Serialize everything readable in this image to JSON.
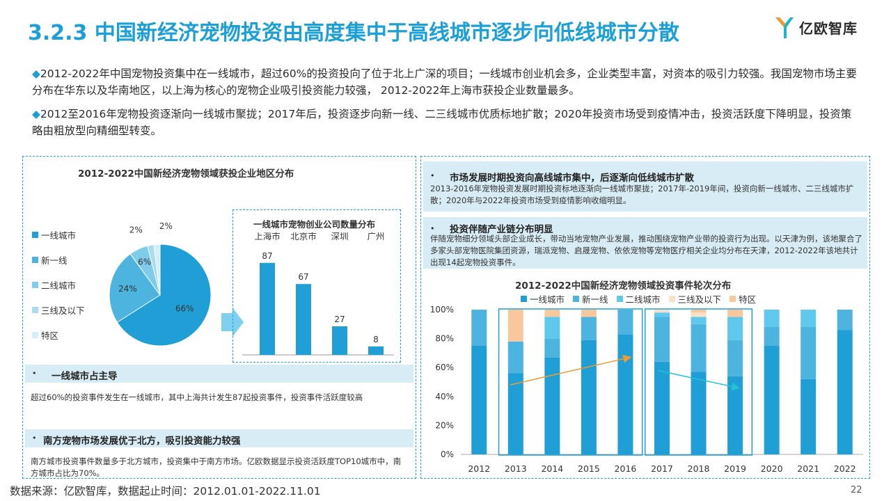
{
  "header": {
    "title": "3.2.3 中国新经济宠物投资由高度集中于高线城市逐步向低线城市分散",
    "logo_text": "亿欧智库"
  },
  "intro": {
    "bullet_symbol": "◆",
    "para1": "2012-2022年中国宠物投资集中在一线城市，超过60%的投资投向了位于北上广深的项目；一线城市创业机会多，企业类型丰富，对资本的吸引力较强。我国宠物市场主要分布在华东以及华南地区，以上海为核心的宠物企业吸引投资能力较强， 2012-2022年上海市获投企业数量最多。",
    "para2": "2012至2016年宠物投资逐渐向一线城市聚拢；2017年后，投资逐步向新一线、二三线城市优质标地扩散；2020年投资市场受到疫情冲击，投资活跃度下降明显，投资策略由粗放型向精细型转变。"
  },
  "left_panel": {
    "band1": {
      "bullet": "•",
      "head": "一线城市占主导",
      "body": "超过60%的投资事件发生在一线城市，其中上海共计发生87起投资事件，投资事件活跃度较高"
    },
    "band2": {
      "bullet": "•",
      "head": "南方宠物市场发展优于北方，吸引投资能力较强",
      "body": "南方城市投资事件数量多于北方城市，投资集中于南方市场。亿欧数据显示投资活跃度TOP10城市中，南方城市占比为70%。"
    }
  },
  "right_panel": {
    "band1": {
      "bullet": "•",
      "head": "市场发展时期投资向高线城市集中，后逐渐向低线城市扩散",
      "body": "2013-2016年宠物投资发展时期投资标地逐渐向一线城市聚拢；2017年-2019年间，投资向新一线城市、二三线城市扩散；2020年与2022年投资市场受到疫情影响收缩明显。"
    },
    "band2": {
      "bullet": "•",
      "head": "投资伴随产业链分布明显",
      "body": "伴随宠物细分领域头部企业成长，带动当地宠物产业发展，推动围绕宠物产业带的投资行为出现。以天津为例，该地聚合了多家头部宠物医院集团资源，瑞派宠物、启晟宠物、依依宠物等宠物医疗相关企业均分布在天津，2012-2022年该地共计出现14起宠物投资事件。"
    }
  },
  "footer": {
    "source": "数据来源：亿欧智库，数据起止时间：2012.01.01-2022.11.01",
    "page": "22"
  },
  "chart_data": [
    {
      "type": "pie",
      "title": "2012-2022中国新经济宠物领域获投企业地区分布",
      "categories": [
        "一线城市",
        "新一线",
        "二线城市",
        "三线及以下",
        "特区"
      ],
      "values": [
        66,
        24,
        6,
        2,
        2
      ],
      "labels": [
        "66%",
        "24%",
        "6%",
        "2%",
        "2%"
      ],
      "colors": [
        "#1f9fd6",
        "#4db3df",
        "#7fcbea",
        "#a9dcf1",
        "#d4eef9"
      ],
      "legend": "left"
    },
    {
      "type": "bar",
      "title": "一线城市宠物创业公司数量分布",
      "categories": [
        "上海市",
        "北京市",
        "深圳",
        "广州"
      ],
      "values": [
        87,
        67,
        27,
        8
      ],
      "color": "#1f9fd6"
    },
    {
      "type": "bar",
      "stacked": true,
      "title": "2012-2022中国新经济宠物领域投资事件轮次分布",
      "categories": [
        "2012",
        "2013",
        "2014",
        "2015",
        "2016",
        "2017",
        "2018",
        "2019",
        "2020",
        "2021",
        "2022"
      ],
      "yticks": [
        "0%",
        "20%",
        "40%",
        "60%",
        "80%",
        "100%"
      ],
      "ylim": [
        0,
        100
      ],
      "legend": "top",
      "series": [
        {
          "name": "一线城市",
          "color": "#1f9fd6",
          "values": [
            75,
            56,
            67,
            79,
            83,
            64,
            57,
            54,
            75,
            52,
            86
          ]
        },
        {
          "name": "新一线",
          "color": "#4db3df",
          "values": [
            25,
            22,
            13,
            16,
            17,
            31,
            33,
            25,
            13,
            36,
            14
          ]
        },
        {
          "name": "二线城市",
          "color": "#5fc8ec",
          "values": [
            0,
            0,
            15,
            0,
            0,
            3,
            5,
            16,
            12,
            12,
            0
          ]
        },
        {
          "name": "三线及以下",
          "color": "#fbe0c8",
          "values": [
            0,
            0,
            0,
            0,
            0,
            2,
            3,
            0,
            0,
            0,
            0
          ]
        },
        {
          "name": "特区",
          "color": "#f8c79b",
          "values": [
            0,
            22,
            5,
            5,
            0,
            0,
            2,
            5,
            0,
            0,
            0
          ]
        }
      ]
    }
  ]
}
